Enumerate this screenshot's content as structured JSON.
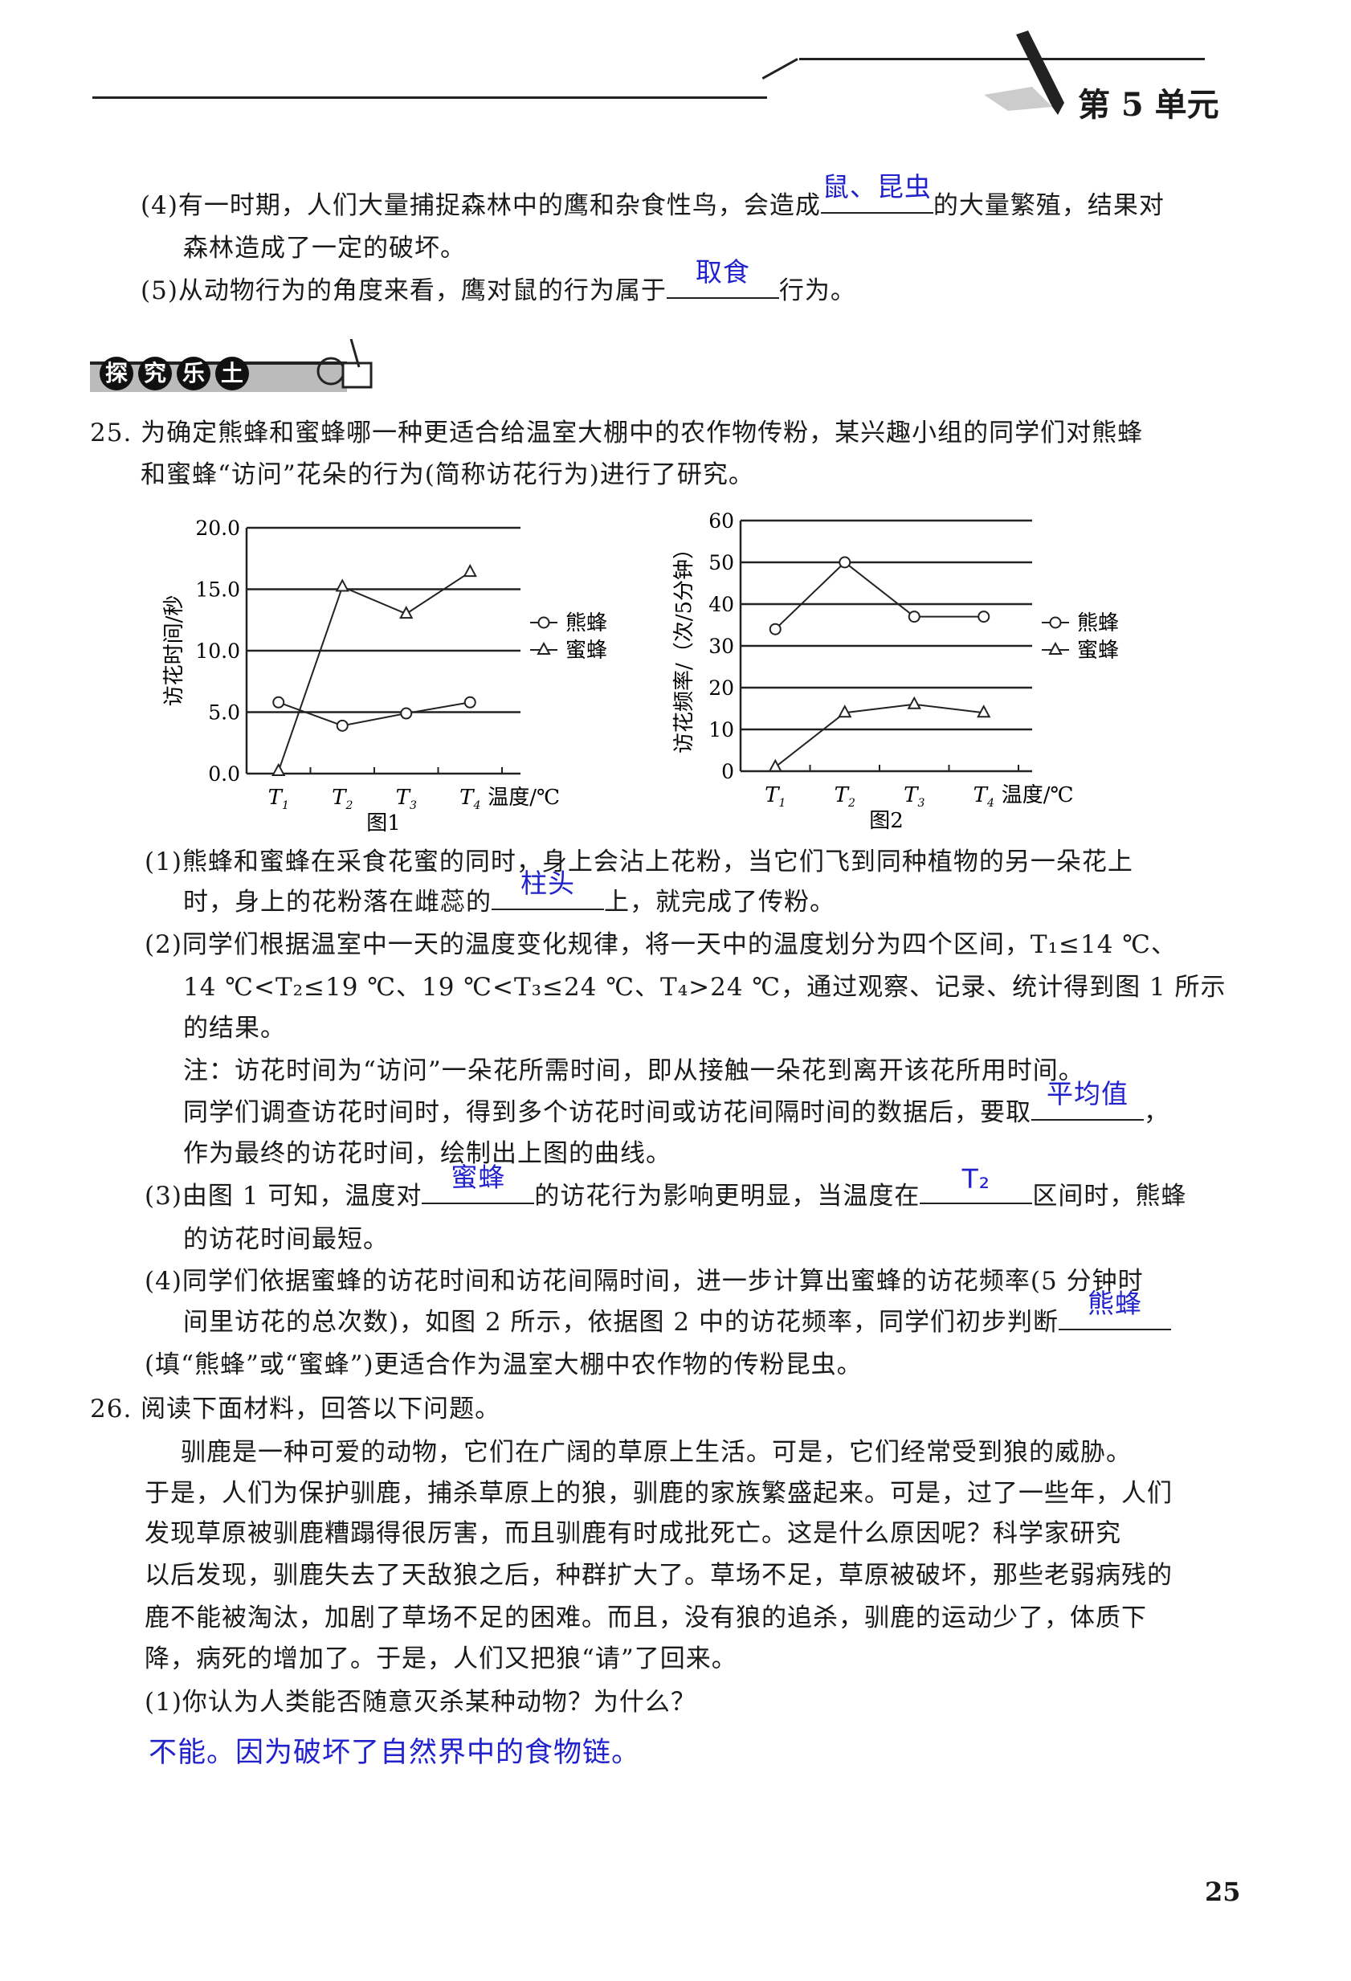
{
  "header": {
    "unit": "第 5 单元",
    "page_number": "25",
    "banner_chars": [
      "探",
      "究",
      "乐",
      "土"
    ]
  },
  "lines": [
    [
      {
        "t": "(4)有一时期，人们大量捕捉森林中的鹰和杂食性鸟，会造成"
      },
      {
        "a": "鼠、昆虫",
        "w": 140
      },
      {
        "t": "的大量繁殖，结果对"
      }
    ],
    [
      {
        "t": "森林造成了一定的破坏。"
      }
    ],
    [
      {
        "t": "(5)从动物行为的角度来看，鹰对鼠的行为属于"
      },
      {
        "a": "取食",
        "w": 140
      },
      {
        "t": "行为。"
      }
    ],
    [
      {
        "t": "25. 为确定熊蜂和蜜蜂哪一种更适合给温室大棚中的农作物传粉，某兴趣小组的同学们对熊蜂"
      }
    ],
    [
      {
        "t": "和蜜蜂“访问”花朵的行为(简称访花行为)进行了研究。"
      }
    ],
    [
      {
        "t": "(1)熊蜂和蜜蜂在采食花蜜的同时，身上会沾上花粉，当它们飞到同种植物的另一朵花上"
      }
    ],
    [
      {
        "t": "时，身上的花粉落在雌蕊的"
      },
      {
        "a": "柱头",
        "w": 140
      },
      {
        "t": "上，就完成了传粉。"
      }
    ],
    [
      {
        "t": "(2)同学们根据温室中一天的温度变化规律，将一天中的温度划分为四个区间，T₁≤14 ℃、"
      }
    ],
    [
      {
        "t": "14 ℃<T₂≤19 ℃、19 ℃<T₃≤24 ℃、T₄>24 ℃，通过观察、记录、统计得到图 1 所示"
      }
    ],
    [
      {
        "t": "的结果。"
      }
    ],
    [
      {
        "t": "注：访花时间为“访问”一朵花所需时间，即从接触一朵花到离开该花所用时间。"
      }
    ],
    [
      {
        "t": "同学们调查访花时间时，得到多个访花时间或访花间隔时间的数据后，要取"
      },
      {
        "a": "平均值",
        "w": 140
      },
      {
        "t": "，"
      }
    ],
    [
      {
        "t": "作为最终的访花时间，绘制出上图的曲线。"
      }
    ],
    [
      {
        "t": "(3)由图 1 可知，温度对"
      },
      {
        "a": "蜜蜂",
        "w": 140
      },
      {
        "t": "的访花行为影响更明显，当温度在"
      },
      {
        "a": "T₂",
        "w": 140
      },
      {
        "t": "区间时，熊蜂"
      }
    ],
    [
      {
        "t": "的访花时间最短。"
      }
    ],
    [
      {
        "t": "(4)同学们依据蜜蜂的访花时间和访花间隔时间，进一步计算出蜜蜂的访花频率(5 分钟时"
      }
    ],
    [
      {
        "t": "间里访花的总次数)，如图 2 所示，依据图 2 中的访花频率，同学们初步判断"
      },
      {
        "a": "熊蜂",
        "w": 140
      }
    ],
    [
      {
        "t": "(填“熊蜂”或“蜜蜂”)更适合作为温室大棚中农作物的传粉昆虫。"
      }
    ],
    [
      {
        "t": "26. 阅读下面材料，回答以下问题。"
      }
    ],
    [
      {
        "t": "驯鹿是一种可爱的动物，它们在广阔的草原上生活。可是，它们经常受到狼的威胁。"
      }
    ],
    [
      {
        "t": "于是，人们为保护驯鹿，捕杀草原上的狼，驯鹿的家族繁盛起来。可是，过了一些年，人们"
      }
    ],
    [
      {
        "t": "发现草原被驯鹿糟蹋得很厉害，而且驯鹿有时成批死亡。这是什么原因呢？科学家研究"
      }
    ],
    [
      {
        "t": "以后发现，驯鹿失去了天敌狼之后，种群扩大了。草场不足，草原被破坏，那些老弱病残的"
      }
    ],
    [
      {
        "t": "鹿不能被淘汰，加剧了草场不足的困难。而且，没有狼的追杀，驯鹿的运动少了，体质下"
      }
    ],
    [
      {
        "t": "降，病死的增加了。于是，人们又把狼“请”了回来。"
      }
    ],
    [
      {
        "t": "(1)你认为人类能否随意灭杀某种动物？为什么？"
      }
    ],
    [
      {
        "h": "不能。因为破坏了自然界中的食物链。"
      }
    ]
  ],
  "chart_data": [
    {
      "type": "line",
      "title": "图1",
      "ylabel": "访花时间/秒",
      "xlabel": "温度/℃",
      "categories": [
        "T1",
        "T2",
        "T3",
        "T4"
      ],
      "ylim": [
        0,
        20
      ],
      "yticks": [
        "0.0",
        "5.0",
        "10.0",
        "15.0",
        "20.0"
      ],
      "grid": "horizontal",
      "series": [
        {
          "name": "熊蜂",
          "marker": "circle",
          "values": [
            5.8,
            3.9,
            4.9,
            5.8
          ]
        },
        {
          "name": "蜜蜂",
          "marker": "triangle",
          "values": [
            0.2,
            15.2,
            13.0,
            16.4
          ]
        }
      ],
      "legend": "right"
    },
    {
      "type": "line",
      "title": "图2",
      "ylabel": "访花频率/（次/5分钟）",
      "xlabel": "温度/℃",
      "categories": [
        "T1",
        "T2",
        "T3",
        "T4"
      ],
      "ylim": [
        0,
        60
      ],
      "yticks": [
        "0",
        "10",
        "20",
        "30",
        "40",
        "50",
        "60"
      ],
      "grid": "horizontal",
      "series": [
        {
          "name": "熊蜂",
          "marker": "circle",
          "values": [
            34,
            50,
            37,
            37
          ]
        },
        {
          "name": "蜜蜂",
          "marker": "triangle",
          "values": [
            1,
            14,
            16,
            14
          ]
        }
      ],
      "legend": "right"
    }
  ]
}
